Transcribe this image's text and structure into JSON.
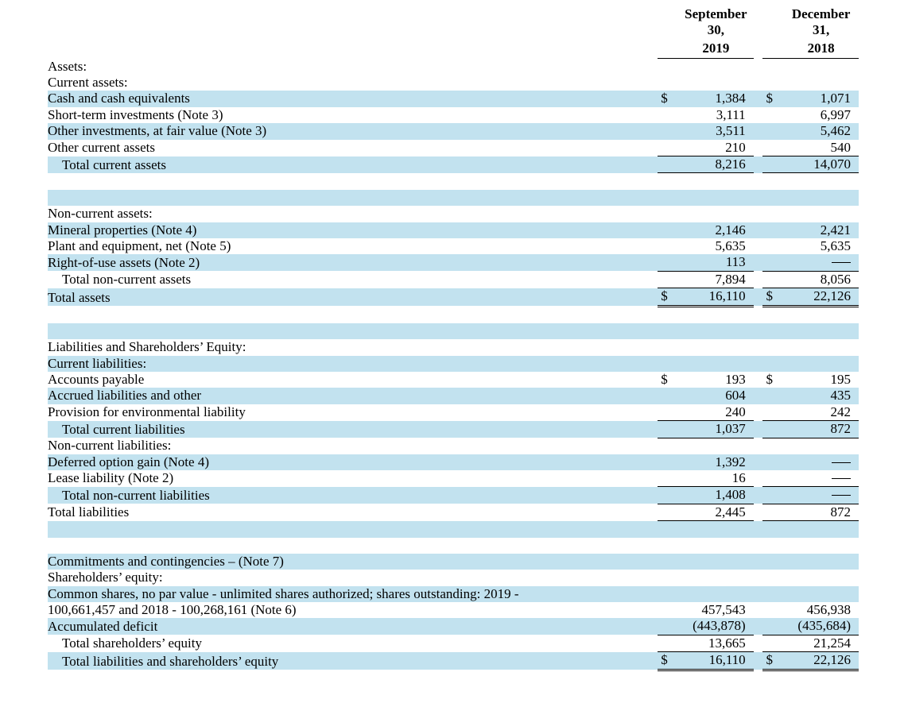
{
  "style": {
    "shade_color": "#c2e2ef",
    "font_family": "Times New Roman",
    "base_font_size_pt": 12,
    "header_font_weight": "bold"
  },
  "header": {
    "col1_l1": "September 30,",
    "col1_l2": "2019",
    "col2_l1": "December 31,",
    "col2_l2": "2018"
  },
  "rows": [
    {
      "id": "r1",
      "label": "Assets:",
      "indent": 0,
      "c1": "",
      "v1": "",
      "c2": "",
      "v2": "",
      "shade": false,
      "u1": "",
      "u2": ""
    },
    {
      "id": "r2",
      "label": "Current assets:",
      "indent": 0,
      "c1": "",
      "v1": "",
      "c2": "",
      "v2": "",
      "shade": false,
      "u1": "",
      "u2": ""
    },
    {
      "id": "r3",
      "label": "Cash and cash equivalents",
      "indent": 0,
      "c1": "$",
      "v1": "1,384",
      "c2": "$",
      "v2": "1,071",
      "shade": true,
      "u1": "",
      "u2": ""
    },
    {
      "id": "r4",
      "label": "Short-term investments (Note 3)",
      "indent": 0,
      "c1": "",
      "v1": "3,111",
      "c2": "",
      "v2": "6,997",
      "shade": false,
      "u1": "",
      "u2": ""
    },
    {
      "id": "r5",
      "label": "Other investments, at fair value (Note 3)",
      "indent": 0,
      "c1": "",
      "v1": "3,511",
      "c2": "",
      "v2": "5,462",
      "shade": true,
      "u1": "",
      "u2": ""
    },
    {
      "id": "r6",
      "label": "Other current assets",
      "indent": 0,
      "c1": "",
      "v1": "210",
      "c2": "",
      "v2": "540",
      "shade": false,
      "u1": "sgl",
      "u2": "sgl"
    },
    {
      "id": "r7",
      "label": "Total current assets",
      "indent": 1,
      "c1": "",
      "v1": "8,216",
      "c2": "",
      "v2": "14,070",
      "shade": true,
      "u1": "sgl",
      "u2": "sgl"
    },
    {
      "id": "sp1",
      "spacer": true
    },
    {
      "id": "sp1b",
      "spacer": true,
      "shade": true,
      "tight": true
    },
    {
      "id": "r8",
      "label": "Non-current assets:",
      "indent": 0,
      "c1": "",
      "v1": "",
      "c2": "",
      "v2": "",
      "shade": false,
      "u1": "",
      "u2": ""
    },
    {
      "id": "r9",
      "label": "Mineral properties (Note 4)",
      "indent": 0,
      "c1": "",
      "v1": "2,146",
      "c2": "",
      "v2": "2,421",
      "shade": true,
      "u1": "",
      "u2": ""
    },
    {
      "id": "r10",
      "label": "Plant and equipment, net (Note 5)",
      "indent": 0,
      "c1": "",
      "v1": "5,635",
      "c2": "",
      "v2": "5,635",
      "shade": false,
      "u1": "",
      "u2": ""
    },
    {
      "id": "r11",
      "label": "Right-of-use assets (Note 2)",
      "indent": 0,
      "c1": "",
      "v1": "113",
      "c2": "",
      "v2": "—dash",
      "shade": true,
      "u1": "sgl",
      "u2": "sgl"
    },
    {
      "id": "r12",
      "label": "Total non-current assets",
      "indent": 1,
      "c1": "",
      "v1": "7,894",
      "c2": "",
      "v2": "8,056",
      "shade": false,
      "u1": "sgl",
      "u2": "sgl"
    },
    {
      "id": "r13",
      "label": "Total assets",
      "indent": 0,
      "c1": "$",
      "v1": "16,110",
      "c2": "$",
      "v2": "22,126",
      "shade": true,
      "u1": "dbl",
      "u2": "dbl"
    },
    {
      "id": "sp2",
      "spacer": true
    },
    {
      "id": "sp2b",
      "spacer": true,
      "shade": true,
      "tight": true
    },
    {
      "id": "r14",
      "label": "Liabilities and Shareholders’ Equity:",
      "indent": 0,
      "c1": "",
      "v1": "",
      "c2": "",
      "v2": "",
      "shade": false,
      "u1": "",
      "u2": ""
    },
    {
      "id": "r15",
      "label": "Current liabilities:",
      "indent": 0,
      "c1": "",
      "v1": "",
      "c2": "",
      "v2": "",
      "shade": true,
      "u1": "",
      "u2": ""
    },
    {
      "id": "r16",
      "label": "Accounts payable",
      "indent": 0,
      "c1": "$",
      "v1": "193",
      "c2": "$",
      "v2": "195",
      "shade": false,
      "u1": "",
      "u2": ""
    },
    {
      "id": "r17",
      "label": "Accrued liabilities and other",
      "indent": 0,
      "c1": "",
      "v1": "604",
      "c2": "",
      "v2": "435",
      "shade": true,
      "u1": "",
      "u2": ""
    },
    {
      "id": "r18",
      "label": "Provision for environmental liability",
      "indent": 0,
      "c1": "",
      "v1": "240",
      "c2": "",
      "v2": "242",
      "shade": false,
      "u1": "sgl",
      "u2": "sgl"
    },
    {
      "id": "r19",
      "label": "Total current liabilities",
      "indent": 1,
      "c1": "",
      "v1": "1,037",
      "c2": "",
      "v2": "872",
      "shade": true,
      "u1": "sgl",
      "u2": "sgl"
    },
    {
      "id": "r20",
      "label": "Non-current liabilities:",
      "indent": 0,
      "c1": "",
      "v1": "",
      "c2": "",
      "v2": "",
      "shade": false,
      "u1": "",
      "u2": ""
    },
    {
      "id": "r21",
      "label": "Deferred option gain (Note 4)",
      "indent": 0,
      "c1": "",
      "v1": "1,392",
      "c2": "",
      "v2": "—dash",
      "shade": true,
      "u1": "",
      "u2": ""
    },
    {
      "id": "r22",
      "label": "Lease liability (Note 2)",
      "indent": 0,
      "c1": "",
      "v1": "16",
      "c2": "",
      "v2": "—dash",
      "shade": false,
      "u1": "sgl",
      "u2": "sgl"
    },
    {
      "id": "r23",
      "label": "Total non-current liabilities",
      "indent": 1,
      "c1": "",
      "v1": "1,408",
      "c2": "",
      "v2": "—dash",
      "shade": true,
      "u1": "sgl",
      "u2": "sgl"
    },
    {
      "id": "r24",
      "label": "Total liabilities",
      "indent": 0,
      "c1": "",
      "v1": "2,445",
      "c2": "",
      "v2": "872",
      "shade": false,
      "u1": "sgl",
      "u2": "sgl"
    },
    {
      "id": "sp3",
      "spacer": true,
      "shade": true,
      "tight": true
    },
    {
      "id": "sp3b",
      "spacer": true
    },
    {
      "id": "r25",
      "label": "Commitments and contingencies – (Note 7)",
      "indent": 0,
      "c1": "",
      "v1": "",
      "c2": "",
      "v2": "",
      "shade": true,
      "u1": "",
      "u2": ""
    },
    {
      "id": "r26",
      "label": "Shareholders’ equity:",
      "indent": 0,
      "c1": "",
      "v1": "",
      "c2": "",
      "v2": "",
      "shade": false,
      "u1": "",
      "u2": ""
    },
    {
      "id": "r27",
      "label": "Common shares, no par value - unlimited shares authorized; shares outstanding: 2019 -",
      "indent": 0,
      "c1": "",
      "v1": "",
      "c2": "",
      "v2": "",
      "shade": true,
      "u1": "",
      "u2": ""
    },
    {
      "id": "r28",
      "label": "100,661,457 and 2018 - 100,268,161 (Note 6)",
      "indent": 0,
      "c1": "",
      "v1": "457,543",
      "c2": "",
      "v2": "456,938",
      "shade": false,
      "u1": "",
      "u2": ""
    },
    {
      "id": "r29",
      "label": "Accumulated deficit",
      "indent": 0,
      "c1": "",
      "v1": "(443,878)",
      "c2": "",
      "v2": "(435,684)",
      "shade": true,
      "u1": "sgl",
      "u2": "sgl"
    },
    {
      "id": "r30",
      "label": "Total shareholders’ equity",
      "indent": 1,
      "c1": "",
      "v1": "13,665",
      "c2": "",
      "v2": "21,254",
      "shade": false,
      "u1": "sgl",
      "u2": "sgl"
    },
    {
      "id": "r31",
      "label": "Total liabilities and shareholders’ equity",
      "indent": 1,
      "c1": "$",
      "v1": "16,110",
      "c2": "$",
      "v2": "22,126",
      "shade": true,
      "u1": "dbl",
      "u2": "dbl"
    }
  ]
}
